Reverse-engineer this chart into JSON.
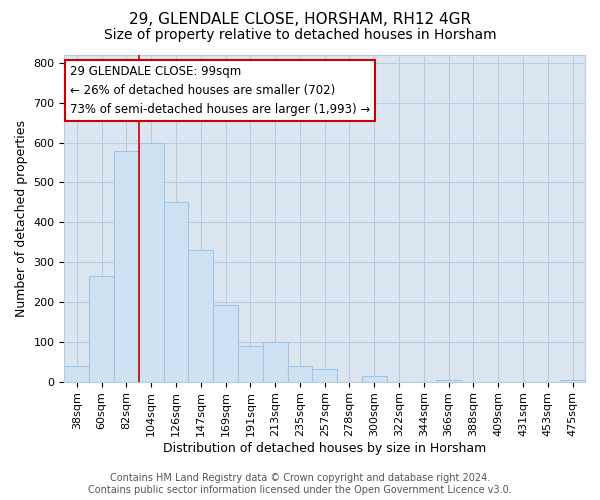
{
  "title": "29, GLENDALE CLOSE, HORSHAM, RH12 4GR",
  "subtitle": "Size of property relative to detached houses in Horsham",
  "xlabel": "Distribution of detached houses by size in Horsham",
  "ylabel": "Number of detached properties",
  "bar_labels": [
    "38sqm",
    "60sqm",
    "82sqm",
    "104sqm",
    "126sqm",
    "147sqm",
    "169sqm",
    "191sqm",
    "213sqm",
    "235sqm",
    "257sqm",
    "278sqm",
    "300sqm",
    "322sqm",
    "344sqm",
    "366sqm",
    "388sqm",
    "409sqm",
    "431sqm",
    "453sqm",
    "475sqm"
  ],
  "bar_values": [
    40,
    265,
    580,
    600,
    450,
    330,
    193,
    90,
    100,
    38,
    32,
    0,
    15,
    0,
    0,
    5,
    0,
    0,
    0,
    0,
    5
  ],
  "bar_color": "#cfe2f3",
  "bar_edge_color": "#9fc5e8",
  "vline_x_index": 3,
  "vline_color": "#cc0000",
  "ylim": [
    0,
    820
  ],
  "yticks": [
    0,
    100,
    200,
    300,
    400,
    500,
    600,
    700,
    800
  ],
  "ann_line1": "29 GLENDALE CLOSE: 99sqm",
  "ann_line2": "← 26% of detached houses are smaller (702)",
  "ann_line3": "73% of semi-detached houses are larger (1,993) →",
  "footer_line1": "Contains HM Land Registry data © Crown copyright and database right 2024.",
  "footer_line2": "Contains public sector information licensed under the Open Government Licence v3.0.",
  "bg_color": "#ffffff",
  "plot_bg_color": "#dce6f1",
  "grid_color": "#b8cce4",
  "title_fontsize": 11,
  "subtitle_fontsize": 10,
  "axis_label_fontsize": 9,
  "tick_fontsize": 8,
  "ann_fontsize": 8.5,
  "footer_fontsize": 7
}
